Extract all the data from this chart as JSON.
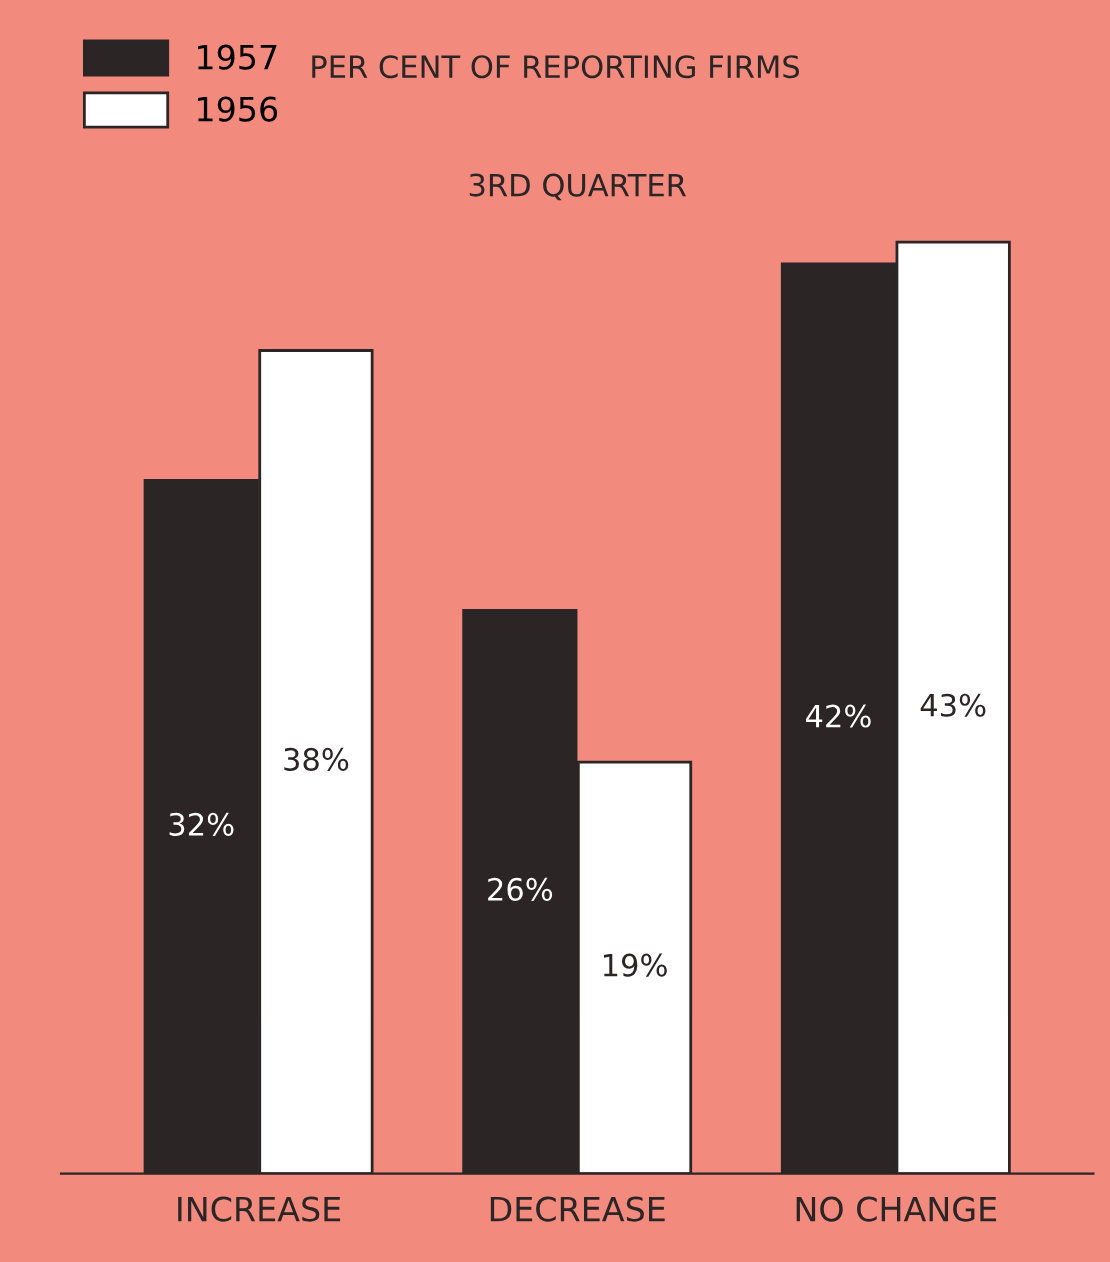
{
  "chart_data": {
    "type": "bar",
    "title": "PER CENT OF REPORTING FIRMS",
    "subtitle": "3RD QUARTER",
    "categories": [
      "INCREASE",
      "DECREASE",
      "NO CHANGE"
    ],
    "series": [
      {
        "name": "1957",
        "color": "#2b2526",
        "values": [
          32,
          26,
          42
        ],
        "value_labels": [
          "32%",
          "26%",
          "42%"
        ]
      },
      {
        "name": "1956",
        "color": "#ffffff",
        "values": [
          38,
          19,
          43
        ],
        "value_labels": [
          "38%",
          "19%",
          "43%"
        ]
      }
    ],
    "legend": "top left",
    "grid": false
  }
}
